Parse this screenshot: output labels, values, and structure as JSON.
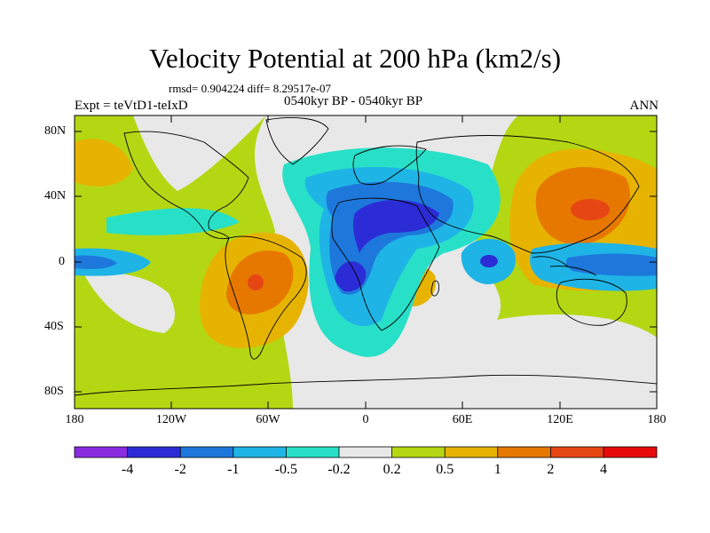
{
  "title": "Velocity Potential at 200 hPa (km2/s)",
  "stats_text": "rmsd= 0.904224 diff= 8.29517e-07",
  "experiment": "Expt = teVtD1-teIxD",
  "period": "0540kyr BP - 0540kyr BP",
  "season": "ANN",
  "map": {
    "lat_ticks": [
      "80N",
      "40N",
      "0",
      "40S",
      "80S"
    ],
    "lon_ticks": [
      "180",
      "120W",
      "60W",
      "0",
      "60E",
      "120E",
      "180"
    ]
  },
  "colorbar": {
    "labels": [
      "-4",
      "-2",
      "-1",
      "-0.5",
      "-0.2",
      "0.2",
      "0.5",
      "1",
      "2",
      "4"
    ],
    "colors": [
      "#8a2be2",
      "#2c2cd6",
      "#1e78dc",
      "#1fb4e6",
      "#28e0c8",
      "#e8e8e8",
      "#b4d714",
      "#e6b400",
      "#e67800",
      "#e64614",
      "#e60a0a"
    ]
  }
}
